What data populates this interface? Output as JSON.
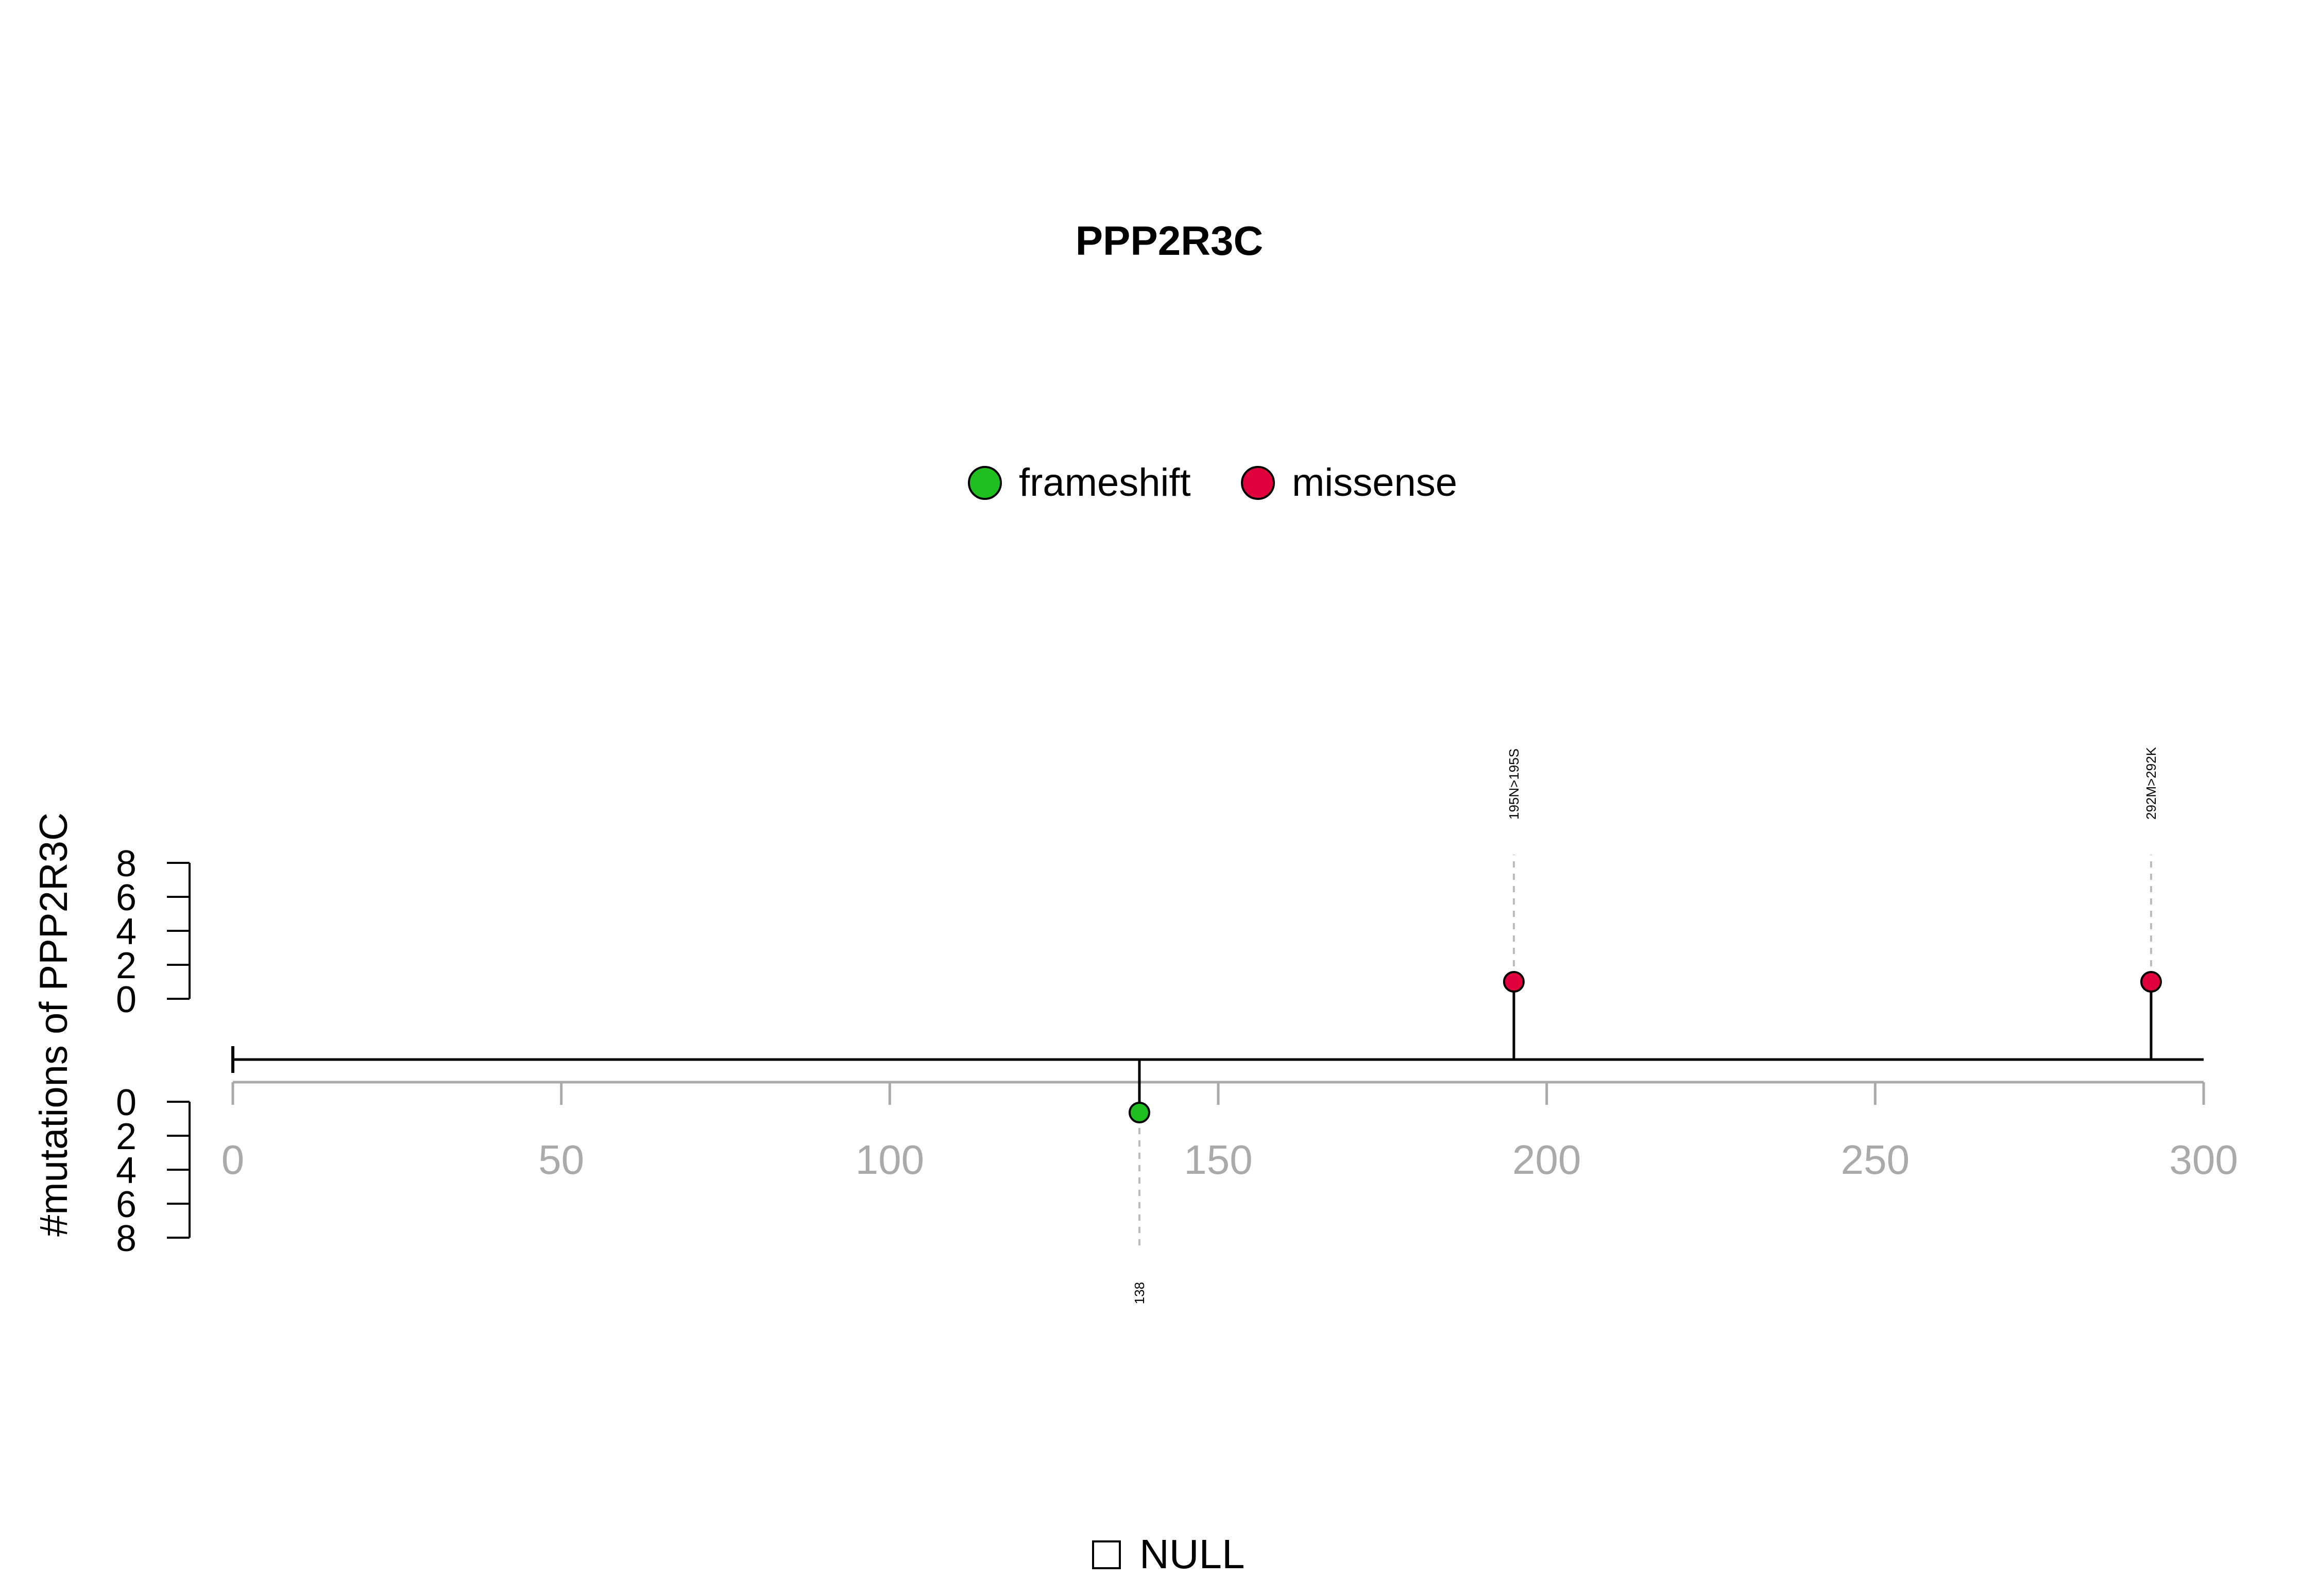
{
  "chart_data": {
    "type": "lollipop",
    "title": "PPP2R3C",
    "ylabel": "#mutations of PPP2R3C",
    "xlim": [
      0,
      300
    ],
    "x_ticks": [
      "0",
      "50",
      "100",
      "150",
      "200",
      "250",
      "300"
    ],
    "x_tick_values": [
      0,
      50,
      100,
      150,
      200,
      250,
      300
    ],
    "y_ticks_top": [
      "0",
      "2",
      "4",
      "6",
      "8"
    ],
    "y_ticks_top_values": [
      0,
      2,
      4,
      6,
      8
    ],
    "y_ticks_bottom": [
      "0",
      "2",
      "4",
      "6",
      "8"
    ],
    "y_ticks_bottom_values": [
      0,
      2,
      4,
      6,
      8
    ],
    "protein_length": 300,
    "legend": [
      {
        "label": "frameshift",
        "color": "#1fbf1f"
      },
      {
        "label": "missense",
        "color": "#e0003c"
      }
    ],
    "mutations": [
      {
        "position": 138,
        "count": 1,
        "type": "frameshift",
        "side": "bottom",
        "label": "138",
        "color": "#1fbf1f"
      },
      {
        "position": 195,
        "count": 1,
        "type": "missense",
        "side": "top",
        "label": "195N>195S",
        "color": "#e0003c"
      },
      {
        "position": 292,
        "count": 1,
        "type": "missense",
        "side": "top",
        "label": "292M>292K",
        "color": "#e0003c"
      }
    ],
    "domain_legend": [
      {
        "label": "NULL",
        "color": "#ffffff"
      }
    ]
  }
}
